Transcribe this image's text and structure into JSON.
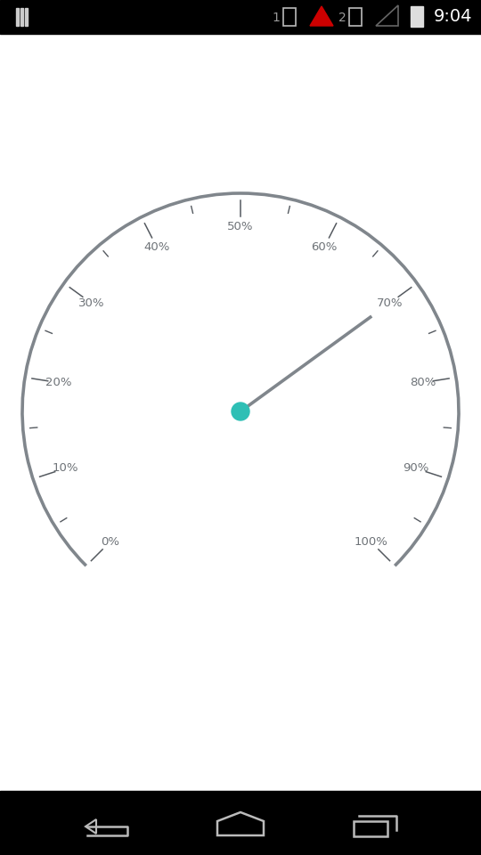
{
  "chart_data": {
    "type": "gauge",
    "value": 70,
    "color": "#2ebfb5",
    "ylim": [
      0,
      100
    ],
    "yticks": [
      {
        "value": 0,
        "label": "0%"
      },
      {
        "value": 10,
        "label": "10%"
      },
      {
        "value": 20,
        "label": "20%"
      },
      {
        "value": 30,
        "label": "30%"
      },
      {
        "value": 40,
        "label": "40%"
      },
      {
        "value": 50,
        "label": "50%"
      },
      {
        "value": 60,
        "label": "60%"
      },
      {
        "value": 70,
        "label": "70%"
      },
      {
        "value": 80,
        "label": "80%"
      },
      {
        "value": 90,
        "label": "90%"
      },
      {
        "value": 100,
        "label": "100%"
      }
    ]
  },
  "status_bar": {
    "sim_labels": [
      "1",
      "2"
    ],
    "time": "9:04"
  }
}
